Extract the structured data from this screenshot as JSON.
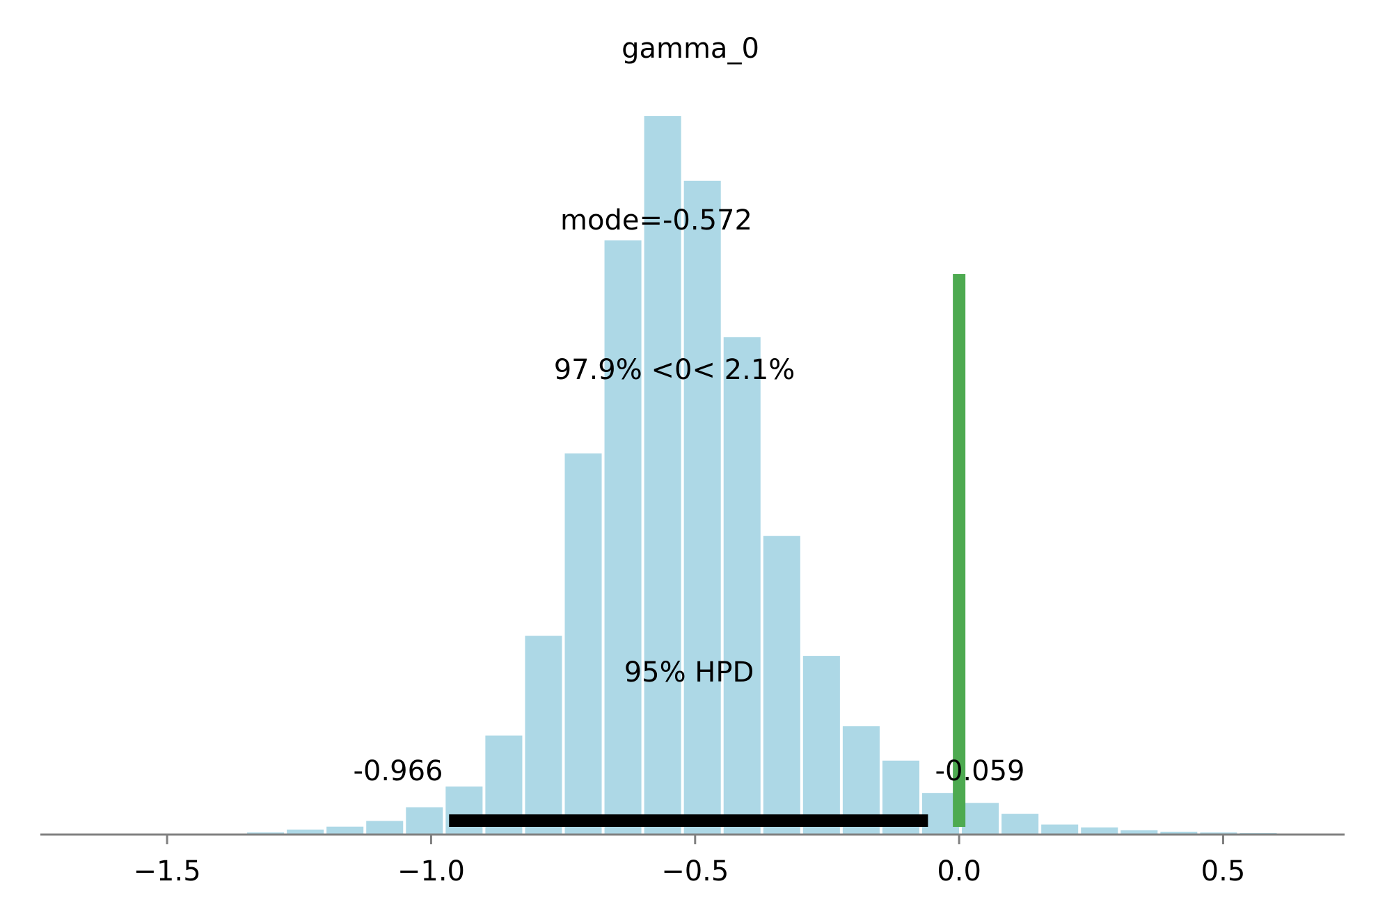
{
  "chart_data": {
    "type": "bar",
    "title": "gamma_0",
    "xlabel": "",
    "ylabel": "",
    "xlim": [
      -1.74,
      0.73
    ],
    "ylim": [
      0,
      1000
    ],
    "grid": false,
    "ticks": [
      {
        "value": -1.5,
        "label": "−1.5"
      },
      {
        "value": -1.0,
        "label": "−1.0"
      },
      {
        "value": -0.5,
        "label": "−0.5"
      },
      {
        "value": 0.0,
        "label": "0.0"
      },
      {
        "value": 0.5,
        "label": "0.5"
      }
    ],
    "bin_width": 0.0752,
    "bin_centers": [
      -1.3135,
      -1.2383,
      -1.1631,
      -1.0879,
      -1.0127,
      -0.9375,
      -0.8623,
      -0.7871,
      -0.7119,
      -0.6367,
      -0.5615,
      -0.4863,
      -0.4111,
      -0.3359,
      -0.2607,
      -0.1855,
      -0.1103,
      -0.0351,
      0.0401,
      0.1153,
      0.1905,
      0.2657,
      0.3409,
      0.4161,
      0.4913,
      0.5665
    ],
    "counts": [
      2,
      6,
      10,
      18,
      37,
      66,
      137,
      276,
      530,
      827,
      1000,
      910,
      692,
      415,
      248,
      150,
      102,
      57,
      43,
      28,
      13,
      9,
      5,
      3,
      2,
      1
    ],
    "bar_color": "#add8e6",
    "mode_label": "mode=-0.572",
    "ref_label": "97.9% <0< 2.1%",
    "reference_value": 0.0,
    "reference_color": "#4daa50",
    "reference_height_fraction": 0.78,
    "hpd": {
      "label": "95% HPD",
      "low": -0.966,
      "high": -0.059,
      "low_label": "-0.966",
      "high_label": "-0.059",
      "color": "#000000"
    },
    "axis_color": "#808080"
  }
}
